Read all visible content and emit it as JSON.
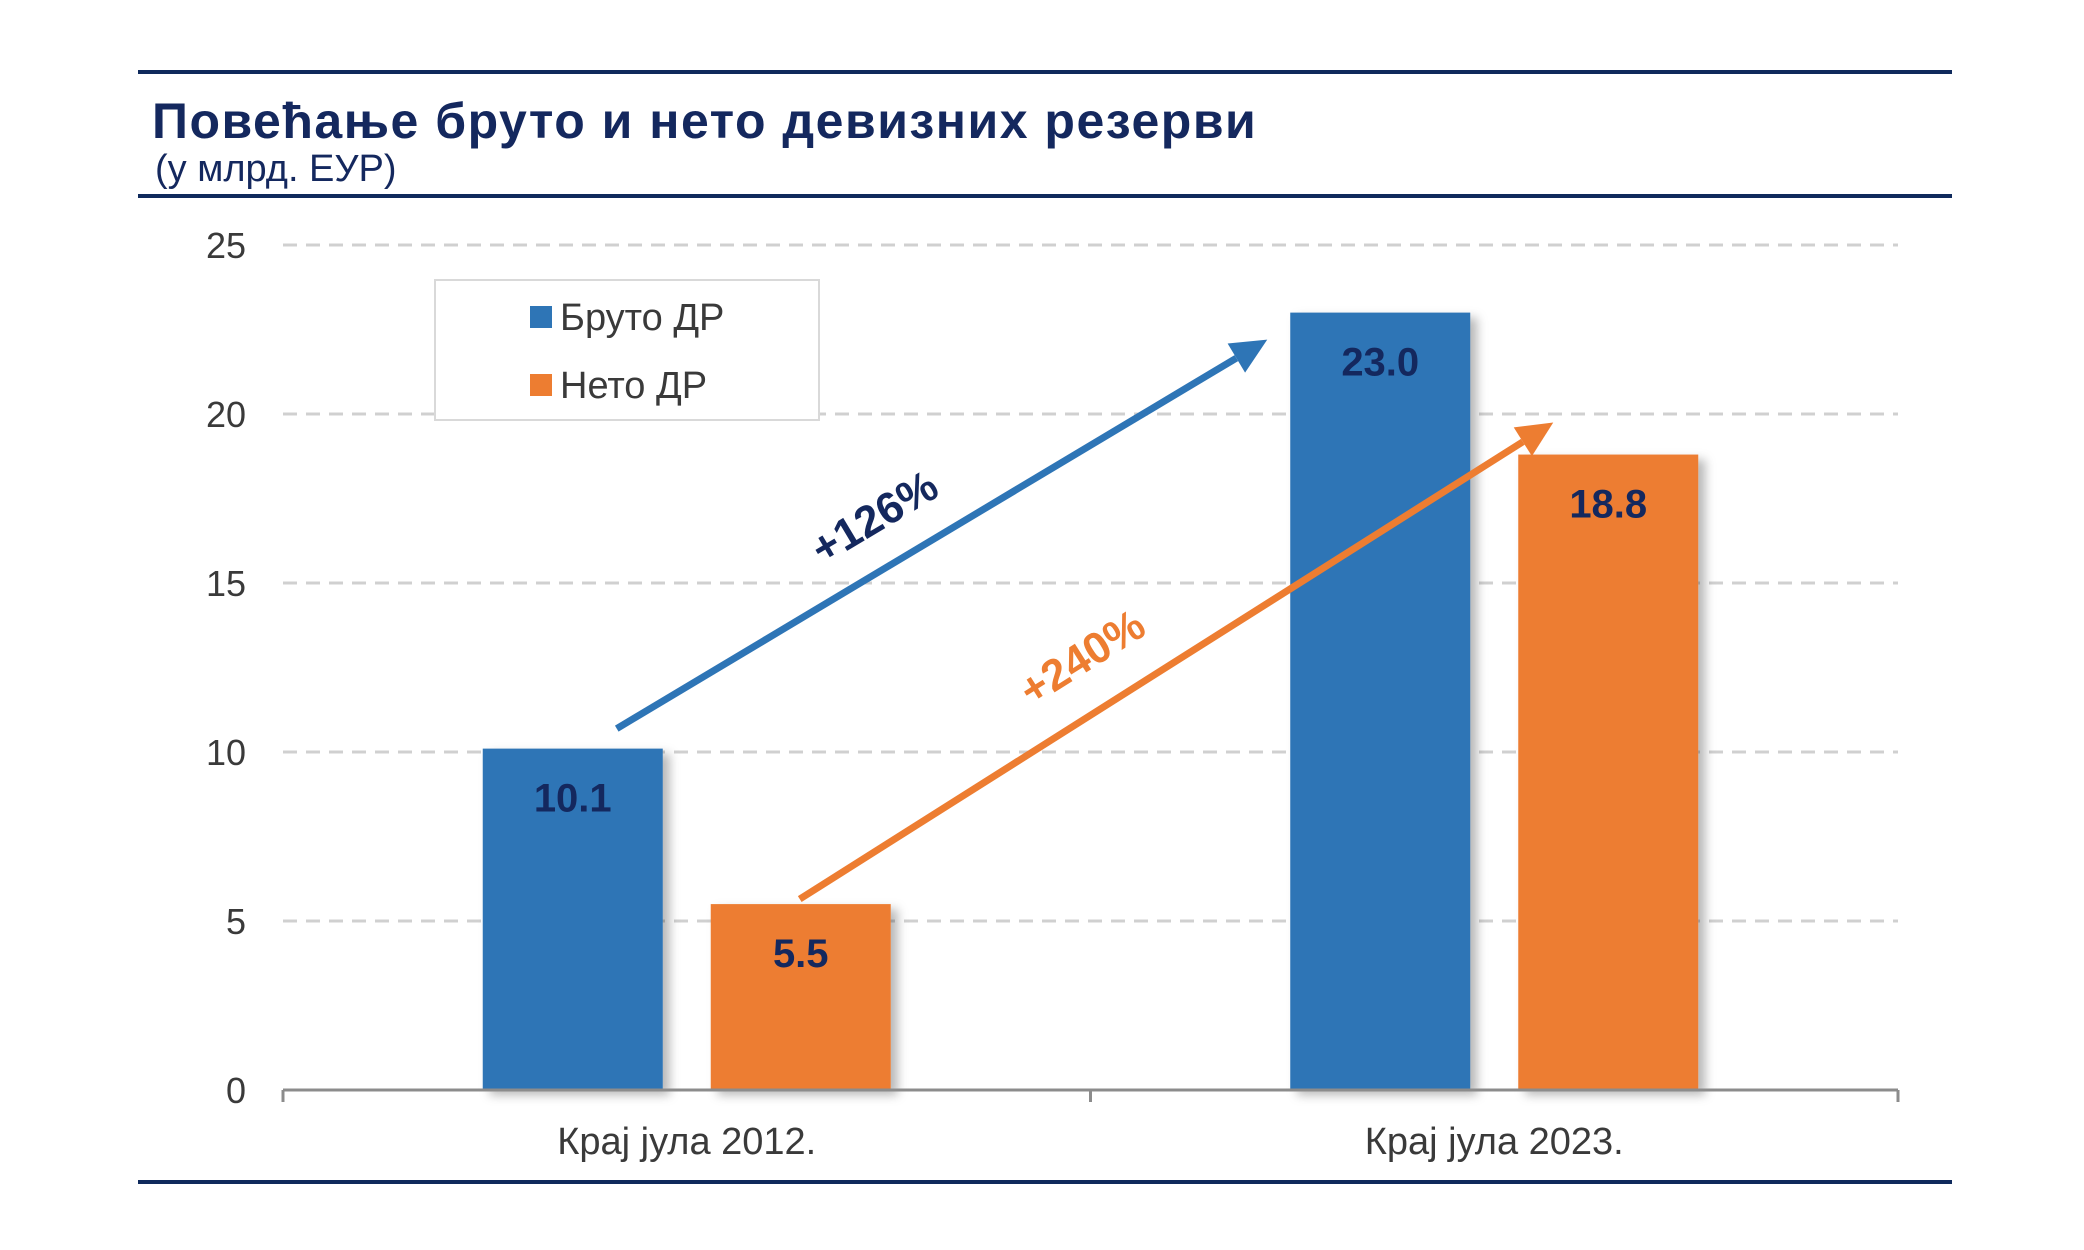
{
  "title": "Повећање бруто и нето девизних резерви",
  "subtitle": "(у млрд. ЕУР)",
  "colors": {
    "bruto": "#2e75b6",
    "neto": "#ed7d31",
    "dark_navy": "#14285e",
    "axis": "#8c8c8c",
    "grid": "#d0d0d0"
  },
  "chart_data": {
    "type": "bar",
    "categories": [
      "Крај јула 2012.",
      "Крај јула 2023."
    ],
    "series": [
      {
        "name": "Бруто ДР",
        "values": [
          10.1,
          23.0
        ],
        "labels": [
          "10.1",
          "23.0"
        ],
        "color": "#2e75b6"
      },
      {
        "name": "Нето ДР",
        "values": [
          5.5,
          18.8
        ],
        "labels": [
          "5.5",
          "18.8"
        ],
        "color": "#ed7d31"
      }
    ],
    "ylim": [
      0,
      25
    ],
    "yticks": [
      0,
      5,
      10,
      15,
      20,
      25
    ],
    "grid": true,
    "legend": "top-left",
    "annotations": [
      {
        "text": "+126%",
        "series": "Бруто ДР",
        "color": "#2e75b6",
        "label_color": "#14285e"
      },
      {
        "text": "+240%",
        "series": "Нето ДР",
        "color": "#ed7d31",
        "label_color": "#ed7d31"
      }
    ]
  }
}
